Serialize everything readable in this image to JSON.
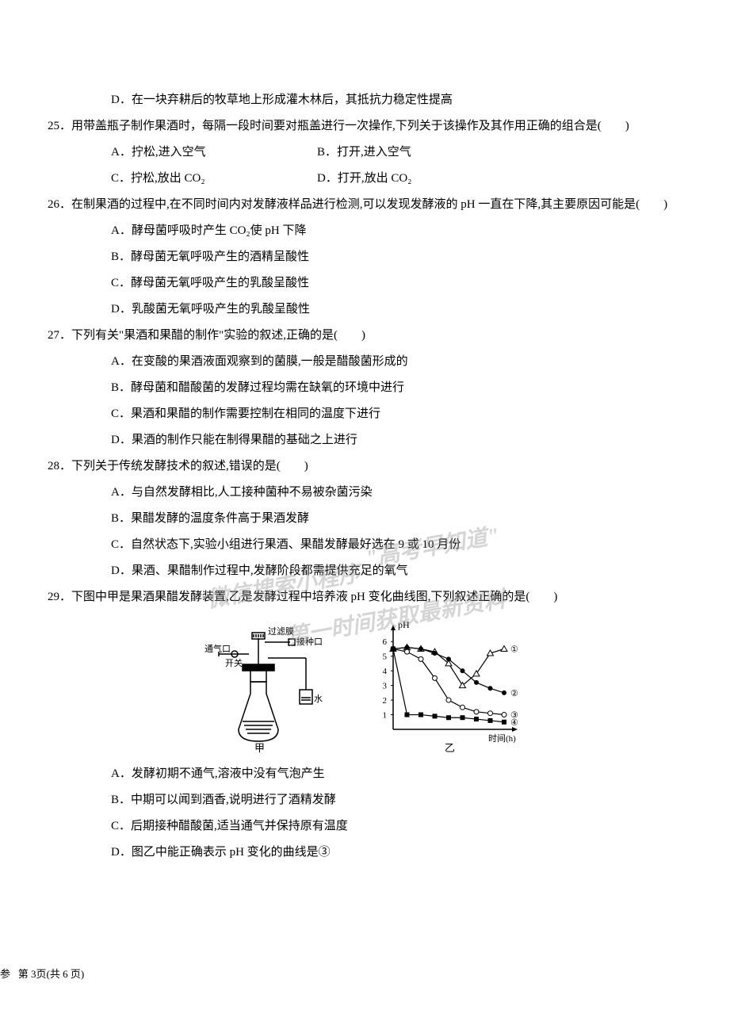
{
  "q24_option_d": "D．在一块弃耕后的牧草地上形成灌木林后，其抵抗力稳定性提高",
  "q25": {
    "text": "25．用带盖瓶子制作果酒时，每隔一段时间要对瓶盖进行一次操作,下列关于该操作及其作用正确的组合是(　　)",
    "a": "A．拧松,进入空气",
    "b": "B．打开,进入空气",
    "c": "C．拧松,放出 CO₂",
    "d": "D．打开,放出 CO₂"
  },
  "q26": {
    "text": "26．在制果酒的过程中,在不同时间内对发酵液样品进行检测,可以发现发酵液的 pH 一直在下降,其主要原因可能是(　　)",
    "a": "A．酵母菌呼吸时产生 CO₂使 pH 下降",
    "b": "B．酵母菌无氧呼吸产生的酒精呈酸性",
    "c": "C．酵母菌无氧呼吸产生的乳酸呈酸性",
    "d": "D．乳酸菌无氧呼吸产生的乳酸呈酸性"
  },
  "q27": {
    "text": "27．下列有关\"果酒和果醋的制作\"实验的叙述,正确的是(　　)",
    "a": "A．在变酸的果酒液面观察到的菌膜,一般是醋酸菌形成的",
    "b": "B．酵母菌和醋酸菌的发酵过程均需在缺氧的环境中进行",
    "c": "C．果酒和果醋的制作需要控制在相同的温度下进行",
    "d": "D．果酒的制作只能在制得果醋的基础之上进行"
  },
  "q28": {
    "text": "28．下列关于传统发酵技术的叙述,错误的是(　　)",
    "a": "A．与自然发酵相比,人工接种菌种不易被杂菌污染",
    "b": "B．果醋发酵的温度条件高于果酒发酵",
    "c": "C．自然状态下,实验小组进行果酒、果醋发酵最好选在 9 或 10 月份",
    "d": "D．果酒、果醋制作过程中,发酵阶段都需提供充足的氧气"
  },
  "q29": {
    "text": "29．下图中甲是果酒果醋发酵装置,乙是发酵过程中培养液 pH 变化曲线图,下列叙述正确的是(　　)",
    "a": "A．发酵初期不通气,溶液中没有气泡产生",
    "b": "B．中期可以闻到酒香,说明进行了酒精发酵",
    "c": "C．后期接种醋酸菌,适当通气并保持原有温度",
    "d": "D．图乙中能正确表示 pH 变化的曲线是③"
  },
  "apparatus_labels": {
    "filter": "过滤膜",
    "air": "通气口",
    "switch": "开关",
    "inoculate": "接种口",
    "water": "水",
    "jia": "甲"
  },
  "chart": {
    "ylabel": "pH",
    "xlabel": "时间(h)",
    "yticks": [
      1,
      2,
      3,
      4,
      5,
      6
    ],
    "ylim": [
      0,
      6.5
    ],
    "series": {
      "1": {
        "marker": "triangle-open",
        "label": "①",
        "data": [
          [
            0,
            5.5
          ],
          [
            1,
            5.6
          ],
          [
            2,
            5.5
          ],
          [
            3,
            5.3
          ],
          [
            4,
            4.5
          ],
          [
            5,
            3.0
          ],
          [
            6,
            3.8
          ],
          [
            7,
            5.2
          ],
          [
            8,
            5.5
          ]
        ]
      },
      "2": {
        "marker": "circle-filled",
        "label": "②",
        "data": [
          [
            0,
            5.5
          ],
          [
            1,
            5.6
          ],
          [
            2,
            5.5
          ],
          [
            3,
            5.2
          ],
          [
            4,
            4.8
          ],
          [
            5,
            4.0
          ],
          [
            6,
            3.2
          ],
          [
            7,
            2.8
          ],
          [
            8,
            2.5
          ]
        ]
      },
      "3": {
        "marker": "circle-open",
        "label": "③",
        "data": [
          [
            0,
            5.5
          ],
          [
            1,
            5.3
          ],
          [
            2,
            4.8
          ],
          [
            3,
            3.5
          ],
          [
            4,
            2.0
          ],
          [
            5,
            1.5
          ],
          [
            6,
            1.2
          ],
          [
            7,
            1.1
          ],
          [
            8,
            1.0
          ]
        ]
      },
      "4": {
        "marker": "square-filled",
        "label": "④",
        "data": [
          [
            0,
            5.5
          ],
          [
            1,
            1.0
          ],
          [
            2,
            1.0
          ],
          [
            3,
            0.9
          ],
          [
            4,
            0.8
          ],
          [
            5,
            0.8
          ],
          [
            6,
            0.7
          ],
          [
            7,
            0.6
          ],
          [
            8,
            0.5
          ]
        ]
      }
    },
    "yi": "乙"
  },
  "watermarks": {
    "w1": "\"高考早知道\"",
    "w2": "微信搜索小程序",
    "w3": "第一时间获取最新资料"
  },
  "footer": "第 3页(共 6 页)",
  "footer_prefix": "参"
}
